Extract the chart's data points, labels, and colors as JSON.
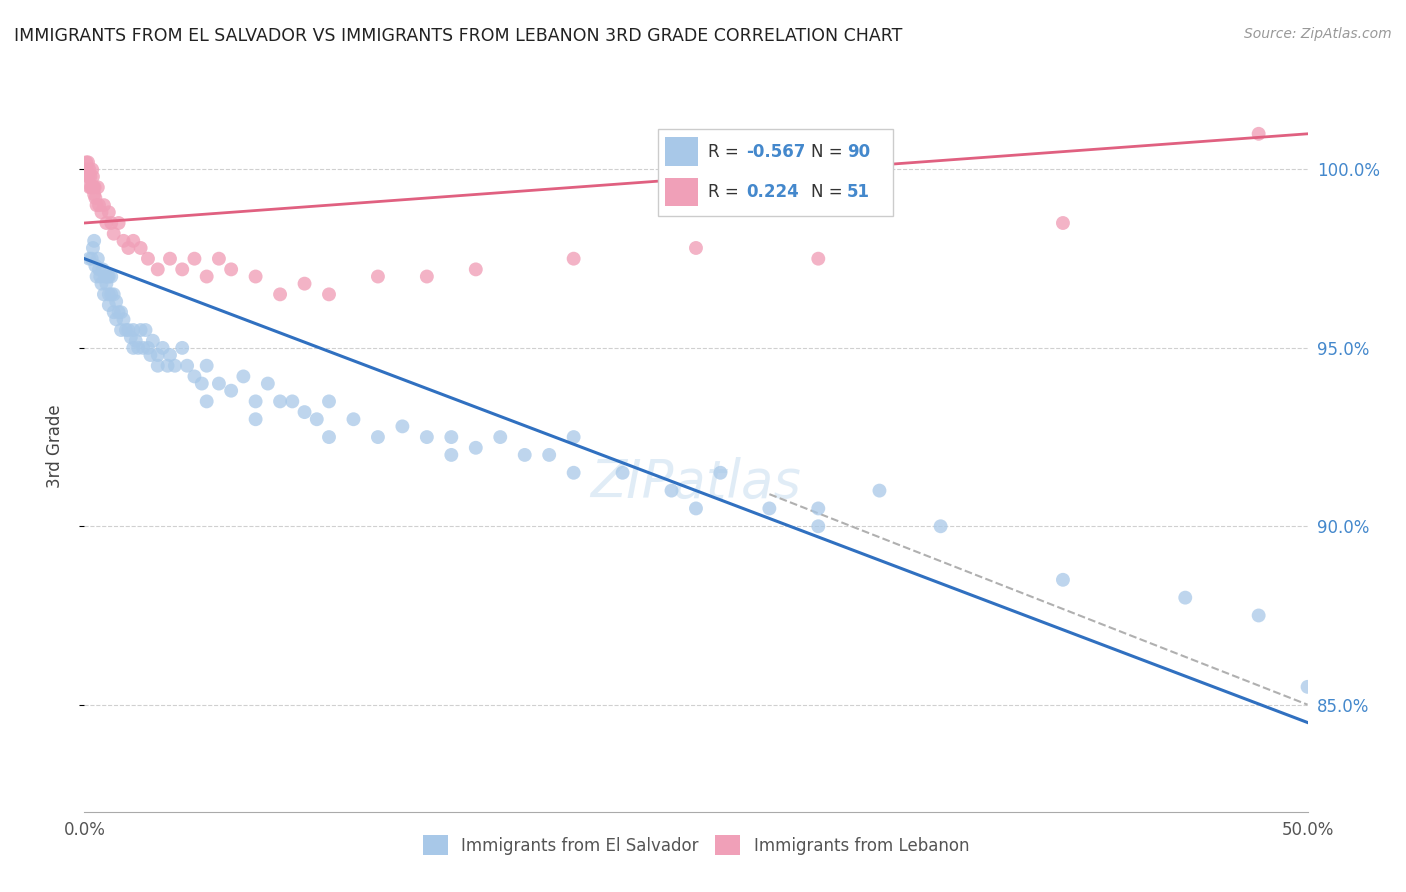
{
  "title": "IMMIGRANTS FROM EL SALVADOR VS IMMIGRANTS FROM LEBANON 3RD GRADE CORRELATION CHART",
  "source": "Source: ZipAtlas.com",
  "ylabel": "3rd Grade",
  "xmin": 0.0,
  "xmax": 50.0,
  "ymin": 82.0,
  "ymax": 102.5,
  "yticks": [
    85.0,
    90.0,
    95.0,
    100.0
  ],
  "ytick_labels": [
    "85.0%",
    "90.0%",
    "95.0%",
    "100.0%"
  ],
  "color_blue": "#a8c8e8",
  "color_pink": "#f0a0b8",
  "color_line_blue": "#3070c0",
  "color_line_pink": "#e06080",
  "color_dashed": "#b0b0b0",
  "color_grid": "#d0d0d0",
  "color_title": "#222222",
  "color_right_axis": "#4488cc",
  "color_legend_text_dark": "#333333",
  "blue_line_x0": 0.0,
  "blue_line_x1": 50.0,
  "blue_line_y0": 97.5,
  "blue_line_y1": 84.5,
  "pink_line_x0": 0.0,
  "pink_line_x1": 50.0,
  "pink_line_y0": 98.5,
  "pink_line_y1": 101.0,
  "dashed_x0": 28.0,
  "dashed_x1": 50.0,
  "dashed_y0": 90.9,
  "dashed_y1": 85.0,
  "blue_pts_x": [
    0.2,
    0.3,
    0.35,
    0.4,
    0.45,
    0.5,
    0.55,
    0.6,
    0.65,
    0.7,
    0.75,
    0.8,
    0.85,
    0.9,
    0.95,
    1.0,
    1.0,
    1.0,
    1.1,
    1.1,
    1.2,
    1.2,
    1.3,
    1.3,
    1.4,
    1.5,
    1.5,
    1.6,
    1.7,
    1.8,
    1.9,
    2.0,
    2.0,
    2.1,
    2.2,
    2.3,
    2.4,
    2.5,
    2.6,
    2.7,
    2.8,
    3.0,
    3.2,
    3.4,
    3.5,
    3.7,
    4.0,
    4.2,
    4.5,
    4.8,
    5.0,
    5.5,
    6.0,
    6.5,
    7.0,
    7.5,
    8.0,
    8.5,
    9.0,
    9.5,
    10.0,
    11.0,
    12.0,
    13.0,
    14.0,
    15.0,
    16.0,
    17.0,
    18.0,
    19.0,
    20.0,
    22.0,
    24.0,
    26.0,
    28.0,
    30.0,
    32.5,
    35.0,
    40.0,
    45.0,
    48.0,
    50.0,
    3.0,
    5.0,
    7.0,
    10.0,
    15.0,
    20.0,
    25.0,
    30.0
  ],
  "blue_pts_y": [
    97.5,
    97.5,
    97.8,
    98.0,
    97.3,
    97.0,
    97.5,
    97.2,
    97.0,
    96.8,
    97.2,
    96.5,
    97.0,
    96.8,
    97.0,
    97.0,
    96.5,
    96.2,
    97.0,
    96.5,
    96.5,
    96.0,
    96.3,
    95.8,
    96.0,
    96.0,
    95.5,
    95.8,
    95.5,
    95.5,
    95.3,
    95.0,
    95.5,
    95.2,
    95.0,
    95.5,
    95.0,
    95.5,
    95.0,
    94.8,
    95.2,
    94.8,
    95.0,
    94.5,
    94.8,
    94.5,
    95.0,
    94.5,
    94.2,
    94.0,
    94.5,
    94.0,
    93.8,
    94.2,
    93.5,
    94.0,
    93.5,
    93.5,
    93.2,
    93.0,
    93.5,
    93.0,
    92.5,
    92.8,
    92.5,
    92.5,
    92.2,
    92.5,
    92.0,
    92.0,
    92.5,
    91.5,
    91.0,
    91.5,
    90.5,
    90.5,
    91.0,
    90.0,
    88.5,
    88.0,
    87.5,
    85.5,
    94.5,
    93.5,
    93.0,
    92.5,
    92.0,
    91.5,
    90.5,
    90.0
  ],
  "pink_pts_x": [
    0.05,
    0.08,
    0.1,
    0.12,
    0.15,
    0.18,
    0.2,
    0.22,
    0.25,
    0.28,
    0.3,
    0.32,
    0.35,
    0.38,
    0.4,
    0.42,
    0.45,
    0.5,
    0.55,
    0.6,
    0.7,
    0.8,
    0.9,
    1.0,
    1.1,
    1.2,
    1.4,
    1.6,
    1.8,
    2.0,
    2.3,
    2.6,
    3.0,
    3.5,
    4.0,
    4.5,
    5.0,
    5.5,
    6.0,
    7.0,
    8.0,
    9.0,
    10.0,
    12.0,
    14.0,
    16.0,
    20.0,
    25.0,
    30.0,
    40.0,
    48.0
  ],
  "pink_pts_y": [
    100.0,
    100.2,
    100.0,
    99.8,
    100.2,
    99.8,
    100.0,
    99.5,
    99.8,
    99.5,
    99.5,
    100.0,
    99.8,
    99.5,
    99.3,
    99.5,
    99.2,
    99.0,
    99.5,
    99.0,
    98.8,
    99.0,
    98.5,
    98.8,
    98.5,
    98.2,
    98.5,
    98.0,
    97.8,
    98.0,
    97.8,
    97.5,
    97.2,
    97.5,
    97.2,
    97.5,
    97.0,
    97.5,
    97.2,
    97.0,
    96.5,
    96.8,
    96.5,
    97.0,
    97.0,
    97.2,
    97.5,
    97.8,
    97.5,
    98.5,
    101.0
  ]
}
